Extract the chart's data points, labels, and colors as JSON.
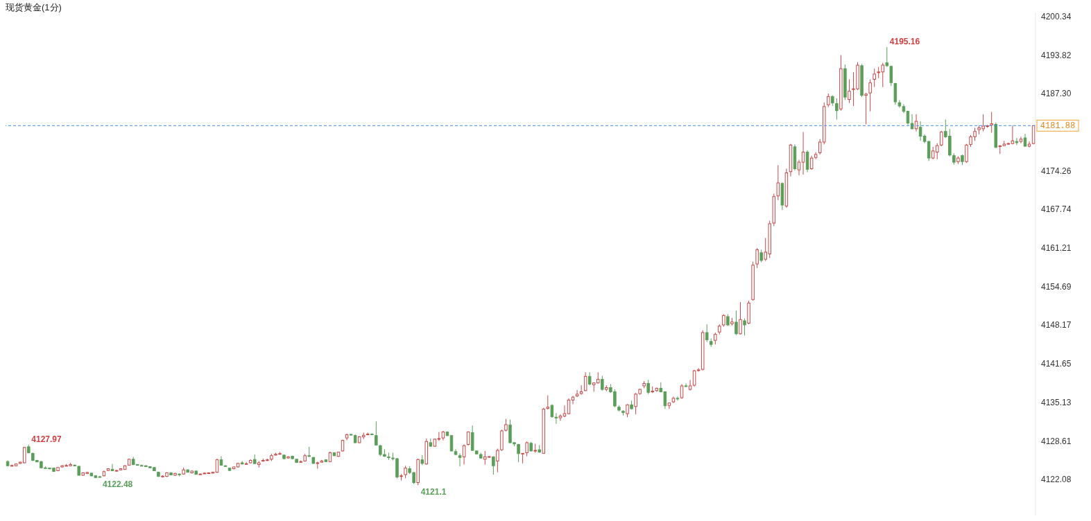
{
  "chart_data": {
    "type": "candlestick",
    "title": "现货黄金(1分)",
    "categories": [
      null,
      null,
      null,
      null,
      null,
      null,
      null,
      null,
      null,
      null,
      null,
      null,
      null,
      null,
      null,
      null,
      null,
      null,
      null,
      null,
      null,
      null,
      null,
      null,
      null,
      null,
      null,
      null,
      null,
      null,
      null,
      null,
      null,
      null,
      null,
      null,
      null,
      null,
      null,
      null,
      null,
      null,
      null,
      null,
      null,
      null,
      null,
      null,
      null,
      null,
      null,
      null,
      null,
      null,
      null,
      null,
      null,
      null,
      null,
      null,
      null,
      null,
      null,
      null,
      null,
      null,
      null,
      null,
      null,
      null,
      null,
      null,
      null,
      null,
      null,
      null,
      null,
      null,
      null,
      null,
      null,
      null,
      null,
      null,
      null,
      null,
      null,
      null,
      null,
      null,
      null,
      null,
      null,
      null,
      null,
      null,
      null,
      null,
      null,
      null,
      null,
      null,
      null,
      null,
      null,
      null,
      null,
      null,
      null,
      null,
      null,
      null,
      null,
      null,
      null,
      null,
      null,
      null,
      null,
      null,
      null,
      null,
      null,
      null,
      null,
      null,
      null,
      null,
      null,
      null,
      null,
      null,
      null,
      null,
      null,
      null,
      null,
      null,
      null,
      null,
      null,
      null,
      null,
      null,
      null,
      null,
      null,
      null,
      null,
      null,
      null,
      null,
      null,
      null,
      null,
      null,
      null,
      null,
      null,
      null,
      null,
      null,
      null,
      null,
      null,
      null,
      null,
      null,
      null,
      null,
      null,
      null,
      null,
      null,
      null,
      null,
      null,
      null,
      null,
      null,
      null,
      null,
      null,
      null,
      null,
      null,
      null,
      null,
      null,
      null,
      null,
      null,
      null,
      null,
      null,
      null,
      null,
      null,
      null,
      null,
      null,
      null,
      null,
      null,
      null,
      null,
      null,
      null,
      null,
      null,
      null,
      null,
      null,
      null,
      null,
      null,
      null,
      null,
      null,
      null,
      null,
      null,
      null,
      null,
      null,
      null,
      null,
      null,
      null,
      null,
      null,
      null,
      null,
      null,
      null,
      null,
      null,
      null,
      null,
      null,
      null,
      null,
      null,
      null,
      null,
      null
    ],
    "ohlc": [
      [
        4125.1,
        4125.3,
        4124.3,
        4124.4
      ],
      [
        4124.4,
        4124.6,
        4124.3,
        4124.45
      ],
      [
        4124.4,
        4124.8,
        4124.3,
        4124.7
      ],
      [
        4124.8,
        4125.1,
        4124.7,
        4125.0
      ],
      [
        4124.9,
        4127.6,
        4124.8,
        4127.5
      ],
      [
        4127.6,
        4127.97,
        4126.5,
        4126.6
      ],
      [
        4126.5,
        4126.6,
        4125.2,
        4125.3
      ],
      [
        4125.3,
        4125.4,
        4125.0,
        4125.05
      ],
      [
        4125.1,
        4125.2,
        4124.0,
        4124.05
      ],
      [
        4124.05,
        4124.3,
        4123.9,
        4124.0
      ],
      [
        4124.0,
        4124.1,
        4123.8,
        4123.9
      ],
      [
        4124.0,
        4124.1,
        4123.4,
        4123.45
      ],
      [
        4123.55,
        4124.2,
        4123.5,
        4124.1
      ],
      [
        4124.2,
        4124.5,
        4124.1,
        4124.4
      ],
      [
        4124.4,
        4124.7,
        4124.3,
        4124.45
      ],
      [
        4124.4,
        4124.9,
        4124.3,
        4124.6
      ],
      [
        4124.5,
        4124.6,
        4124.3,
        4124.4
      ],
      [
        4124.3,
        4124.4,
        4122.7,
        4122.8
      ],
      [
        4122.8,
        4123.3,
        4122.7,
        4123.2
      ],
      [
        4123.1,
        4123.4,
        4123.0,
        4123.25
      ],
      [
        4123.15,
        4123.2,
        4122.6,
        4122.7
      ],
      [
        4122.7,
        4122.8,
        4122.3,
        4122.4
      ],
      [
        4122.55,
        4122.7,
        4122.48,
        4122.5
      ],
      [
        4122.7,
        4123.6,
        4122.6,
        4123.4
      ],
      [
        4123.6,
        4124.0,
        4123.5,
        4123.9
      ],
      [
        4123.8,
        4124.7,
        4123.5,
        4123.55
      ],
      [
        4123.55,
        4123.7,
        4123.4,
        4123.6
      ],
      [
        4123.7,
        4124.0,
        4123.6,
        4123.9
      ],
      [
        4123.8,
        4124.5,
        4123.7,
        4124.4
      ],
      [
        4124.5,
        4125.6,
        4124.4,
        4125.5
      ],
      [
        4125.5,
        4125.9,
        4124.5,
        4124.6
      ],
      [
        4124.6,
        4124.7,
        4124.4,
        4124.5
      ],
      [
        4124.45,
        4124.6,
        4124.3,
        4124.4
      ],
      [
        4124.4,
        4124.5,
        4124.2,
        4124.25
      ],
      [
        4124.25,
        4124.3,
        4124.0,
        4124.05
      ],
      [
        4124.1,
        4124.2,
        4123.5,
        4123.55
      ],
      [
        4123.3,
        4123.4,
        4122.5,
        4122.6
      ],
      [
        4122.6,
        4122.8,
        4122.4,
        4122.65
      ],
      [
        4122.6,
        4123.3,
        4122.5,
        4123.2
      ],
      [
        4123.2,
        4123.3,
        4122.8,
        4122.85
      ],
      [
        4122.8,
        4123.2,
        4122.7,
        4123.1
      ],
      [
        4123.0,
        4123.1,
        4122.6,
        4122.95
      ],
      [
        4123.0,
        4124.1,
        4122.9,
        4123.7
      ],
      [
        4123.7,
        4123.8,
        4123.25,
        4123.3
      ],
      [
        4123.2,
        4123.6,
        4123.1,
        4123.5
      ],
      [
        4123.5,
        4123.6,
        4122.9,
        4122.95
      ],
      [
        4122.95,
        4123.1,
        4122.9,
        4123.0
      ],
      [
        4123.05,
        4123.3,
        4123.0,
        4123.15
      ],
      [
        4123.15,
        4123.3,
        4123.0,
        4123.2
      ],
      [
        4123.15,
        4123.4,
        4123.1,
        4123.3
      ],
      [
        4123.3,
        4125.6,
        4123.2,
        4125.4
      ],
      [
        4125.4,
        4126.0,
        4124.4,
        4124.5
      ],
      [
        4124.4,
        4124.5,
        4124.2,
        4124.35
      ],
      [
        4124.0,
        4124.1,
        4123.5,
        4123.6
      ],
      [
        4123.9,
        4124.3,
        4123.8,
        4124.2
      ],
      [
        4124.2,
        4124.9,
        4124.1,
        4124.8
      ],
      [
        4124.9,
        4125.2,
        4124.6,
        4124.7
      ],
      [
        4124.7,
        4125.0,
        4124.6,
        4124.75
      ],
      [
        4124.9,
        4125.5,
        4124.8,
        4125.3
      ],
      [
        4125.45,
        4126.3,
        4124.7,
        4124.76
      ],
      [
        4124.6,
        4125.2,
        4124.1,
        4124.9
      ],
      [
        4125.2,
        4125.6,
        4125.1,
        4125.3
      ],
      [
        4125.3,
        4125.6,
        4125.2,
        4125.4
      ],
      [
        4125.5,
        4126.4,
        4125.2,
        4126.1
      ],
      [
        4126.2,
        4126.6,
        4126.1,
        4126.35
      ],
      [
        4126.4,
        4126.7,
        4126.3,
        4126.45
      ],
      [
        4126.2,
        4126.3,
        4125.5,
        4125.6
      ],
      [
        4125.7,
        4126.0,
        4125.6,
        4125.9
      ],
      [
        4126.0,
        4126.1,
        4125.5,
        4125.6
      ],
      [
        4125.5,
        4125.6,
        4124.9,
        4124.95
      ],
      [
        4125.0,
        4125.3,
        4124.9,
        4125.1
      ],
      [
        4125.2,
        4126.4,
        4125.1,
        4126.1
      ],
      [
        4126.1,
        4127.6,
        4125.9,
        4126.0
      ],
      [
        4125.8,
        4125.9,
        4124.7,
        4124.8
      ],
      [
        4124.8,
        4125.1,
        4123.9,
        4124.9
      ],
      [
        4125.0,
        4125.4,
        4124.9,
        4125.2
      ],
      [
        4125.4,
        4125.5,
        4125.0,
        4125.1
      ],
      [
        4125.1,
        4126.8,
        4125.0,
        4126.6
      ],
      [
        4126.6,
        4126.7,
        4126.0,
        4126.1
      ],
      [
        4126.0,
        4126.8,
        4125.9,
        4126.7
      ],
      [
        4126.9,
        4128.8,
        4126.8,
        4128.7
      ],
      [
        4129.1,
        4129.8,
        4128.7,
        4129.66
      ],
      [
        4129.7,
        4129.8,
        4129.5,
        4129.6
      ],
      [
        4129.5,
        4129.7,
        4128.2,
        4128.3
      ],
      [
        4128.3,
        4129.4,
        4128.2,
        4129.3
      ],
      [
        4129.3,
        4130.0,
        4128.9,
        4129.55
      ],
      [
        4129.7,
        4130.0,
        4129.6,
        4129.75
      ],
      [
        4129.75,
        4129.9,
        4129.6,
        4129.7
      ],
      [
        4129.5,
        4131.9,
        4127.8,
        4127.9
      ],
      [
        4127.8,
        4127.9,
        4126.0,
        4126.3
      ],
      [
        4126.3,
        4127.2,
        4125.9,
        4126.0
      ],
      [
        4125.9,
        4126.6,
        4125.4,
        4125.8
      ],
      [
        4125.7,
        4126.6,
        4125.3,
        4125.6
      ],
      [
        4125.6,
        4125.7,
        4122.3,
        4122.5
      ],
      [
        4122.6,
        4123.0,
        4121.9,
        4122.7
      ],
      [
        4122.9,
        4124.4,
        4122.3,
        4124.0
      ],
      [
        4123.9,
        4124.3,
        4123.0,
        4123.25
      ],
      [
        4123.25,
        4123.3,
        4121.3,
        4121.56
      ],
      [
        4121.56,
        4125.6,
        4121.1,
        4125.45
      ],
      [
        4125.4,
        4126.2,
        4124.5,
        4124.8
      ],
      [
        4124.7,
        4129.0,
        4124.6,
        4128.5
      ],
      [
        4128.3,
        4129.0,
        4127.6,
        4127.7
      ],
      [
        4127.7,
        4129.0,
        4127.6,
        4128.9
      ],
      [
        4128.9,
        4130.1,
        4128.6,
        4129.0
      ],
      [
        4129.1,
        4130.3,
        4128.7,
        4130.1
      ],
      [
        4130.1,
        4130.2,
        4129.4,
        4129.5
      ],
      [
        4129.5,
        4129.6,
        4126.8,
        4126.9
      ],
      [
        4126.8,
        4127.2,
        4126.2,
        4126.3
      ],
      [
        4126.1,
        4126.5,
        4124.3,
        4125.8
      ],
      [
        4125.9,
        4128.0,
        4124.6,
        4127.8
      ],
      [
        4128.0,
        4130.2,
        4127.8,
        4130.1
      ],
      [
        4130.0,
        4131.2,
        4126.9,
        4127.0
      ],
      [
        4126.9,
        4127.0,
        4126.3,
        4126.4
      ],
      [
        4126.3,
        4126.6,
        4125.6,
        4125.7
      ],
      [
        4125.5,
        4126.9,
        4124.6,
        4125.9
      ],
      [
        4125.9,
        4126.0,
        4125.8,
        4125.95
      ],
      [
        4125.9,
        4126.0,
        4122.9,
        4124.4
      ],
      [
        4125.2,
        4127.3,
        4123.3,
        4127.0
      ],
      [
        4127.1,
        4130.5,
        4126.9,
        4130.3
      ],
      [
        4130.4,
        4132.3,
        4130.2,
        4131.35
      ],
      [
        4131.3,
        4132.2,
        4128.2,
        4128.3
      ],
      [
        4128.3,
        4128.4,
        4127.7,
        4128.1
      ],
      [
        4128.0,
        4128.1,
        4125.0,
        4126.45
      ],
      [
        4126.4,
        4126.5,
        4124.8,
        4126.5
      ],
      [
        4126.6,
        4128.5,
        4126.0,
        4128.3
      ],
      [
        4128.2,
        4128.4,
        4126.8,
        4126.9
      ],
      [
        4126.9,
        4128.1,
        4126.6,
        4127.0
      ],
      [
        4127.1,
        4127.9,
        4126.6,
        4126.7
      ],
      [
        4126.5,
        4134.2,
        4126.4,
        4133.98
      ],
      [
        4134.1,
        4136.3,
        4133.9,
        4134.3
      ],
      [
        4134.6,
        4134.8,
        4132.5,
        4132.7
      ],
      [
        4132.6,
        4133.3,
        4131.5,
        4132.55
      ],
      [
        4132.5,
        4133.1,
        4132.0,
        4132.8
      ],
      [
        4132.8,
        4134.6,
        4132.6,
        4133.2
      ],
      [
        4133.2,
        4135.8,
        4133.1,
        4135.5
      ],
      [
        4135.5,
        4136.2,
        4134.8,
        4136.0
      ],
      [
        4136.2,
        4137.2,
        4136.0,
        4136.5
      ],
      [
        4136.6,
        4138.0,
        4136.4,
        4136.9
      ],
      [
        4137.1,
        4140.2,
        4137.0,
        4139.5
      ],
      [
        4139.5,
        4140.2,
        4138.0,
        4138.2
      ],
      [
        4138.1,
        4138.5,
        4136.9,
        4138.4
      ],
      [
        4138.4,
        4140.2,
        4138.3,
        4139.0
      ],
      [
        4139.0,
        4139.6,
        4137.1,
        4137.3
      ],
      [
        4137.3,
        4138.0,
        4137.0,
        4137.6
      ],
      [
        4137.6,
        4138.2,
        4136.7,
        4136.9
      ],
      [
        4136.9,
        4137.3,
        4134.3,
        4134.5
      ],
      [
        4134.3,
        4134.6,
        4133.6,
        4133.8
      ],
      [
        4133.6,
        4133.8,
        4132.9,
        4133.4
      ],
      [
        4133.2,
        4134.8,
        4132.6,
        4134.7
      ],
      [
        4134.7,
        4135.4,
        4133.9,
        4134.05
      ],
      [
        4134.4,
        4136.7,
        4133.1,
        4136.5
      ],
      [
        4136.6,
        4137.4,
        4136.4,
        4137.3
      ],
      [
        4137.9,
        4138.7,
        4137.5,
        4138.3
      ],
      [
        4138.3,
        4138.9,
        4136.5,
        4136.8
      ],
      [
        4136.9,
        4137.8,
        4136.7,
        4137.0
      ],
      [
        4137.1,
        4137.6,
        4136.9,
        4137.5
      ],
      [
        4137.5,
        4138.5,
        4136.8,
        4136.9
      ],
      [
        4136.9,
        4137.0,
        4134.0,
        4134.55
      ],
      [
        4134.6,
        4135.1,
        4134.0,
        4135.0
      ],
      [
        4135.2,
        4136.1,
        4135.0,
        4135.8
      ],
      [
        4135.8,
        4136.1,
        4135.4,
        4135.75
      ],
      [
        4135.9,
        4138.2,
        4135.7,
        4137.9
      ],
      [
        4137.9,
        4138.3,
        4137.7,
        4137.85
      ],
      [
        4137.3,
        4138.9,
        4137.1,
        4137.9
      ],
      [
        4138.0,
        4140.6,
        4137.8,
        4140.45
      ],
      [
        4140.5,
        4140.9,
        4140.3,
        4140.6
      ],
      [
        4140.7,
        4147.3,
        4140.5,
        4146.9
      ],
      [
        4146.9,
        4148.3,
        4145.3,
        4145.7
      ],
      [
        4145.4,
        4145.9,
        4144.5,
        4144.9
      ],
      [
        4145.6,
        4146.9,
        4144.9,
        4146.6
      ],
      [
        4147.0,
        4148.3,
        4146.6,
        4148.0
      ],
      [
        4148.2,
        4150.0,
        4147.9,
        4149.8
      ],
      [
        4149.6,
        4150.0,
        4148.0,
        4148.2
      ],
      [
        4148.4,
        4149.4,
        4148.1,
        4148.7
      ],
      [
        4148.66,
        4150.6,
        4146.5,
        4146.7
      ],
      [
        4146.7,
        4152.05,
        4146.6,
        4149.1
      ],
      [
        4148.9,
        4149.3,
        4146.4,
        4148.2
      ],
      [
        4148.5,
        4152.3,
        4148.3,
        4151.9
      ],
      [
        4152.5,
        4158.9,
        4152.3,
        4158.3
      ],
      [
        4158.5,
        4161.2,
        4157.8,
        4160.9
      ],
      [
        4160.4,
        4160.9,
        4158.8,
        4159.1
      ],
      [
        4159.3,
        4162.9,
        4159.0,
        4160.5
      ],
      [
        4160.2,
        4165.8,
        4159.5,
        4165.3
      ],
      [
        4165.4,
        4170.4,
        4164.9,
        4169.9
      ],
      [
        4170.0,
        4175.2,
        4169.3,
        4172.2
      ],
      [
        4172.1,
        4172.3,
        4167.6,
        4168.45
      ],
      [
        4168.3,
        4174.6,
        4168.0,
        4173.9
      ],
      [
        4174.1,
        4178.8,
        4173.3,
        4178.6
      ],
      [
        4178.3,
        4178.7,
        4174.3,
        4174.6
      ],
      [
        4174.4,
        4176.1,
        4173.5,
        4175.7
      ],
      [
        4175.7,
        4180.8,
        4173.6,
        4177.4
      ],
      [
        4177.4,
        4177.7,
        4174.0,
        4174.5
      ],
      [
        4174.6,
        4176.8,
        4174.4,
        4176.4
      ],
      [
        4176.5,
        4177.4,
        4176.2,
        4177.0
      ],
      [
        4177.3,
        4179.6,
        4177.0,
        4179.1
      ],
      [
        4179.1,
        4185.8,
        4178.7,
        4185.1
      ],
      [
        4185.4,
        4187.3,
        4185.0,
        4186.8
      ],
      [
        4186.8,
        4187.0,
        4185.2,
        4185.7
      ],
      [
        4185.6,
        4186.5,
        4182.9,
        4184.4
      ],
      [
        4184.7,
        4193.8,
        4184.4,
        4191.5
      ],
      [
        4191.5,
        4192.2,
        4186.2,
        4186.7
      ],
      [
        4186.3,
        4189.7,
        4185.7,
        4187.7
      ],
      [
        4188.0,
        4190.9,
        4185.2,
        4188.1
      ],
      [
        4188.1,
        4192.6,
        4187.9,
        4192.1
      ],
      [
        4192.0,
        4192.3,
        4186.7,
        4187.0
      ],
      [
        4187.0,
        4187.4,
        4182.1,
        4187.2
      ],
      [
        4187.4,
        4189.7,
        4184.3,
        4189.1
      ],
      [
        4189.7,
        4191.5,
        4188.4,
        4190.6
      ],
      [
        4190.9,
        4191.8,
        4189.9,
        4190.95
      ],
      [
        4190.95,
        4192.5,
        4188.4,
        4192.1
      ],
      [
        4192.5,
        4195.16,
        4191.8,
        4192.0
      ],
      [
        4191.9,
        4192.0,
        4188.6,
        4189.15
      ],
      [
        4189.0,
        4189.1,
        4185.4,
        4185.9
      ],
      [
        4185.75,
        4186.2,
        4184.9,
        4185.2
      ],
      [
        4185.1,
        4185.5,
        4184.0,
        4184.3
      ],
      [
        4184.3,
        4184.4,
        4182.0,
        4182.3
      ],
      [
        4182.25,
        4183.8,
        4181.2,
        4181.35
      ],
      [
        4181.35,
        4183.8,
        4180.9,
        4182.6
      ],
      [
        4181.6,
        4182.6,
        4179.3,
        4180.1
      ],
      [
        4180.1,
        4180.4,
        4178.9,
        4179.2
      ],
      [
        4179.2,
        4179.3,
        4175.9,
        4176.4
      ],
      [
        4176.4,
        4178.3,
        4176.2,
        4177.6
      ],
      [
        4177.4,
        4178.9,
        4176.2,
        4178.5
      ],
      [
        4178.6,
        4181.0,
        4178.4,
        4180.8
      ],
      [
        4180.9,
        4182.9,
        4179.8,
        4180.0
      ],
      [
        4180.1,
        4181.3,
        4176.7,
        4176.9
      ],
      [
        4176.8,
        4177.2,
        4175.3,
        4175.7
      ],
      [
        4175.8,
        4176.7,
        4175.4,
        4176.4
      ],
      [
        4176.8,
        4177.0,
        4175.2,
        4175.8
      ],
      [
        4175.8,
        4178.8,
        4175.6,
        4178.6
      ],
      [
        4178.7,
        4180.3,
        4178.3,
        4180.0
      ],
      [
        4180.0,
        4181.5,
        4179.3,
        4180.9
      ],
      [
        4181.2,
        4181.9,
        4180.4,
        4181.5
      ],
      [
        4181.35,
        4183.8,
        4180.9,
        4181.8
      ],
      [
        4181.8,
        4182.0,
        4181.5,
        4181.85
      ],
      [
        4182.0,
        4184.2,
        4180.7,
        4182.2
      ],
      [
        4182.1,
        4182.4,
        4178.1,
        4178.2
      ],
      [
        4178.4,
        4178.6,
        4177.1,
        4178.45
      ],
      [
        4178.5,
        4179.3,
        4178.4,
        4178.75
      ],
      [
        4178.8,
        4179.0,
        4178.7,
        4178.85
      ],
      [
        4178.85,
        4181.9,
        4178.7,
        4179.3
      ],
      [
        4179.2,
        4179.8,
        4178.6,
        4179.0
      ],
      [
        4179.2,
        4180.0,
        4178.9,
        4179.6
      ],
      [
        4179.8,
        4180.5,
        4178.3,
        4178.4
      ],
      [
        4178.4,
        4179.2,
        4178.2,
        4178.75
      ],
      [
        4178.85,
        4181.9,
        4178.7,
        4181.88
      ]
    ],
    "colors": [
      "#5a9e5a",
      "#c84848",
      "#c84848",
      "#c84848",
      "#c84848",
      "#5a9e5a",
      "#5a9e5a",
      "#5a9e5a",
      "#5a9e5a",
      "#5a9e5a",
      "#5a9e5a",
      "#5a9e5a",
      "#c84848",
      "#c84848",
      "#c84848",
      "#c84848",
      "#5a9e5a",
      "#5a9e5a",
      "#c84848",
      "#c84848",
      "#5a9e5a",
      "#5a9e5a",
      "#5a9e5a",
      "#c84848",
      "#c84848",
      "#5a9e5a",
      "#c84848",
      "#c84848",
      "#c84848",
      "#c84848",
      "#5a9e5a",
      "#5a9e5a",
      "#5a9e5a",
      "#5a9e5a",
      "#5a9e5a",
      "#5a9e5a",
      "#5a9e5a",
      "#c84848",
      "#c84848",
      "#5a9e5a",
      "#c84848",
      "#5a9e5a",
      "#c84848",
      "#5a9e5a",
      "#c84848",
      "#5a9e5a",
      "#c84848",
      "#c84848",
      "#c84848",
      "#c84848",
      "#c84848",
      "#5a9e5a",
      "#5a9e5a",
      "#5a9e5a",
      "#c84848",
      "#c84848",
      "#5a9e5a",
      "#c84848",
      "#c84848",
      "#5a9e5a",
      "#c84848",
      "#c84848",
      "#c84848",
      "#c84848",
      "#c84848",
      "#c84848",
      "#5a9e5a",
      "#c84848",
      "#5a9e5a",
      "#5a9e5a",
      "#c84848",
      "#c84848",
      "#5a9e5a",
      "#5a9e5a",
      "#c84848",
      "#c84848",
      "#5a9e5a",
      "#c84848",
      "#5a9e5a",
      "#c84848",
      "#c84848",
      "#c84848",
      "#5a9e5a",
      "#5a9e5a",
      "#c84848",
      "#c84848",
      "#c84848",
      "#5a9e5a",
      "#5a9e5a",
      "#5a9e5a",
      "#5a9e5a",
      "#5a9e5a",
      "#5a9e5a",
      "#5a9e5a",
      "#c84848",
      "#c84848",
      "#5a9e5a",
      "#5a9e5a",
      "#c84848",
      "#5a9e5a",
      "#c84848",
      "#5a9e5a",
      "#c84848",
      "#c84848",
      "#c84848",
      "#5a9e5a",
      "#5a9e5a",
      "#5a9e5a",
      "#5a9e5a",
      "#c84848",
      "#c84848",
      "#5a9e5a",
      "#5a9e5a",
      "#5a9e5a",
      "#c84848",
      "#c84848",
      "#5a9e5a",
      "#c84848",
      "#c84848",
      "#c84848",
      "#5a9e5a",
      "#5a9e5a",
      "#5a9e5a",
      "#c84848",
      "#c84848",
      "#5a9e5a",
      "#c84848",
      "#5a9e5a",
      "#c84848",
      "#c84848",
      "#5a9e5a",
      "#5a9e5a",
      "#c84848",
      "#c84848",
      "#c84848",
      "#c84848",
      "#c84848",
      "#c84848",
      "#c84848",
      "#5a9e5a",
      "#c84848",
      "#c84848",
      "#5a9e5a",
      "#c84848",
      "#5a9e5a",
      "#5a9e5a",
      "#5a9e5a",
      "#5a9e5a",
      "#c84848",
      "#5a9e5a",
      "#c84848",
      "#c84848",
      "#c84848",
      "#5a9e5a",
      "#c84848",
      "#c84848",
      "#5a9e5a",
      "#5a9e5a",
      "#c84848",
      "#c84848",
      "#5a9e5a",
      "#c84848",
      "#5a9e5a",
      "#c84848",
      "#c84848",
      "#c84848",
      "#c84848",
      "#5a9e5a",
      "#5a9e5a",
      "#c84848",
      "#c84848",
      "#c84848",
      "#5a9e5a",
      "#c84848",
      "#5a9e5a",
      "#c84848",
      "#5a9e5a",
      "#c84848",
      "#c84848",
      "#c84848",
      "#5a9e5a",
      "#c84848",
      "#c84848",
      "#c84848",
      "#c84848",
      "#5a9e5a",
      "#c84848",
      "#c84848",
      "#5a9e5a",
      "#c84848",
      "#c84848",
      "#5a9e5a",
      "#c84848",
      "#c84848",
      "#c84848",
      "#c84848",
      "#c84848",
      "#5a9e5a",
      "#5a9e5a",
      "#c84848",
      "#5a9e5a",
      "#c84848",
      "#c84848",
      "#c84848",
      "#5a9e5a",
      "#c84848",
      "#c84848",
      "#c84848",
      "#c84848",
      "#c84848",
      "#5a9e5a",
      "#5a9e5a",
      "#5a9e5a",
      "#5a9e5a",
      "#5a9e5a",
      "#5a9e5a",
      "#5a9e5a",
      "#c84848",
      "#5a9e5a",
      "#5a9e5a",
      "#5a9e5a",
      "#c84848",
      "#c84848",
      "#c84848",
      "#5a9e5a",
      "#5a9e5a",
      "#5a9e5a",
      "#c84848",
      "#5a9e5a",
      "#c84848",
      "#c84848",
      "#c84848",
      "#c84848",
      "#c84848",
      "#c84848",
      "#c84848",
      "#5a9e5a",
      "#c84848",
      "#c84848",
      "#c84848",
      "#c84848",
      "#5a9e5a",
      "#c84848",
      "#5a9e5a",
      "#c84848",
      "#c84848"
    ],
    "ylim": [
      4116,
      4201
    ],
    "yticks": [
      4122.08,
      4128.61,
      4135.13,
      4141.65,
      4148.17,
      4154.69,
      4161.21,
      4167.74,
      4174.26,
      {
        "value": 4187.3,
        "label": "4187.30"
      },
      4193.82,
      4200.34
    ],
    "ref_lines": [
      {
        "axis": "y",
        "value": 4181.88,
        "label": "4181.88",
        "color": "#3a8ee6",
        "line_style": "dashed"
      }
    ],
    "annotations": [
      "4127.97",
      "4122.48",
      "4121.1",
      "4195.16"
    ]
  }
}
